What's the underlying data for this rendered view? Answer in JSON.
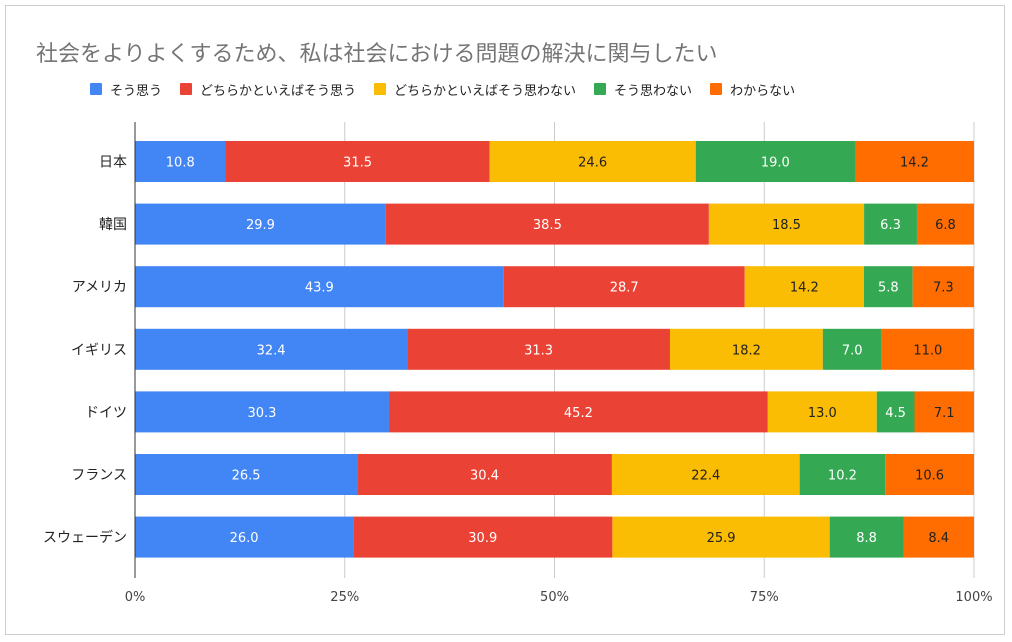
{
  "chart_data": {
    "type": "bar",
    "orientation": "horizontal",
    "stacked": "percent",
    "title": "社会をよりよくするため、私は社会における問題の解決に関与したい",
    "categories": [
      "日本",
      "韓国",
      "アメリカ",
      "イギリス",
      "ドイツ",
      "フランス",
      "スウェーデン"
    ],
    "series": [
      {
        "name": "そう思う",
        "color": "#4285f4",
        "label_color": "#ffffff",
        "values": [
          10.8,
          29.9,
          43.9,
          32.4,
          30.3,
          26.5,
          26.0
        ]
      },
      {
        "name": "どちらかといえばそう思う",
        "color": "#ea4335",
        "label_color": "#ffffff",
        "values": [
          31.5,
          38.5,
          28.7,
          31.3,
          45.2,
          30.4,
          30.9
        ]
      },
      {
        "name": "どちらかといえばそう思わない",
        "color": "#fbbc04",
        "label_color": "#222222",
        "values": [
          24.6,
          18.5,
          14.2,
          18.2,
          13.0,
          22.4,
          25.9
        ]
      },
      {
        "name": "そう思わない",
        "color": "#34a853",
        "label_color": "#ffffff",
        "values": [
          19.0,
          6.3,
          5.8,
          7.0,
          4.5,
          10.2,
          8.8
        ]
      },
      {
        "name": "わからない",
        "color": "#ff6d01",
        "label_color": "#222222",
        "values": [
          14.2,
          6.8,
          7.3,
          11.0,
          7.1,
          10.6,
          8.4
        ]
      }
    ],
    "x_ticks": [
      "0%",
      "25%",
      "50%",
      "75%",
      "100%"
    ],
    "xlim": [
      0,
      100
    ],
    "legend_position": "top",
    "grid": true
  }
}
